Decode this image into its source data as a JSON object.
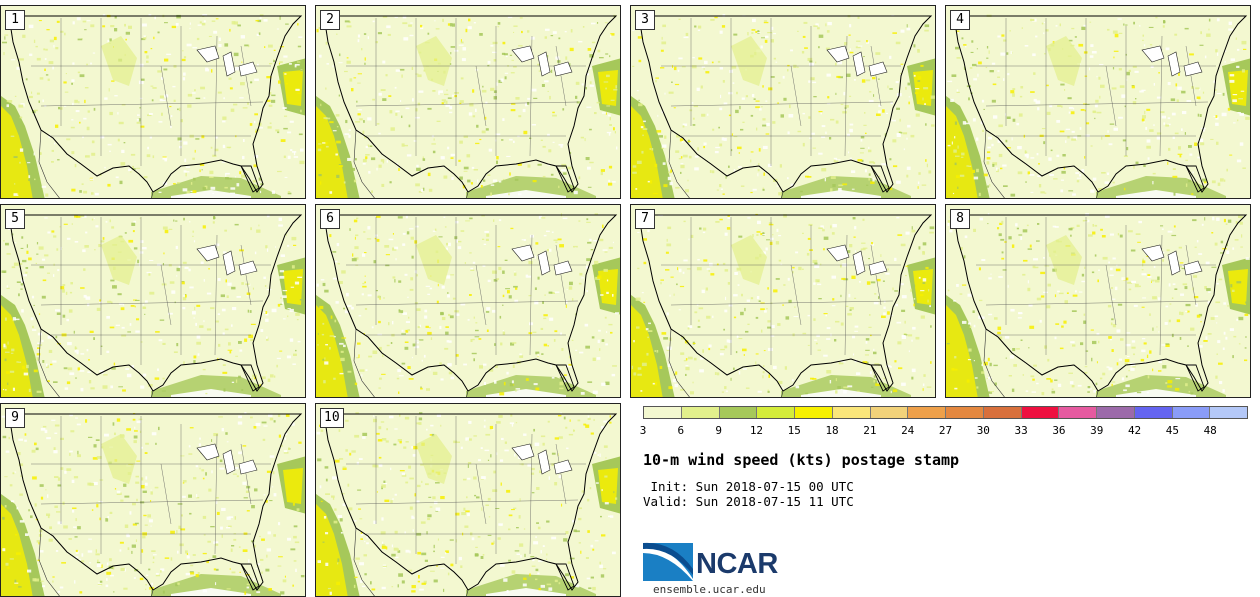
{
  "panels": [
    {
      "label": "1"
    },
    {
      "label": "2"
    },
    {
      "label": "3"
    },
    {
      "label": "4"
    },
    {
      "label": "5"
    },
    {
      "label": "6"
    },
    {
      "label": "7"
    },
    {
      "label": "8"
    },
    {
      "label": "9"
    },
    {
      "label": "10"
    }
  ],
  "colorbar": {
    "ticks": [
      "3",
      "6",
      "9",
      "12",
      "15",
      "18",
      "21",
      "24",
      "27",
      "30",
      "33",
      "36",
      "39",
      "42",
      "45",
      "48"
    ],
    "colors": [
      "#f3f8d0",
      "#e2f08c",
      "#a6c85a",
      "#d4ec3a",
      "#f7f000",
      "#fae67a",
      "#f2d27a",
      "#eea04a",
      "#e48840",
      "#d8703c",
      "#ee1040",
      "#e65aa0",
      "#9c6aaa",
      "#6464f0",
      "#8a9cf8",
      "#b4c8f8"
    ]
  },
  "title": "10-m wind speed (kts) postage stamp",
  "init_text": " Init: Sun 2018-07-15 00 UTC",
  "valid_text": "Valid: Sun 2018-07-15 11 UTC",
  "logo_text": "NCAR",
  "site": "ensemble.ucar.edu",
  "map_colors": {
    "light": "#f3f8d0",
    "mid": "#e2f08c",
    "green": "#a6c85a",
    "yellow": "#f7f000",
    "white": "#ffffff",
    "border": "#000000"
  }
}
